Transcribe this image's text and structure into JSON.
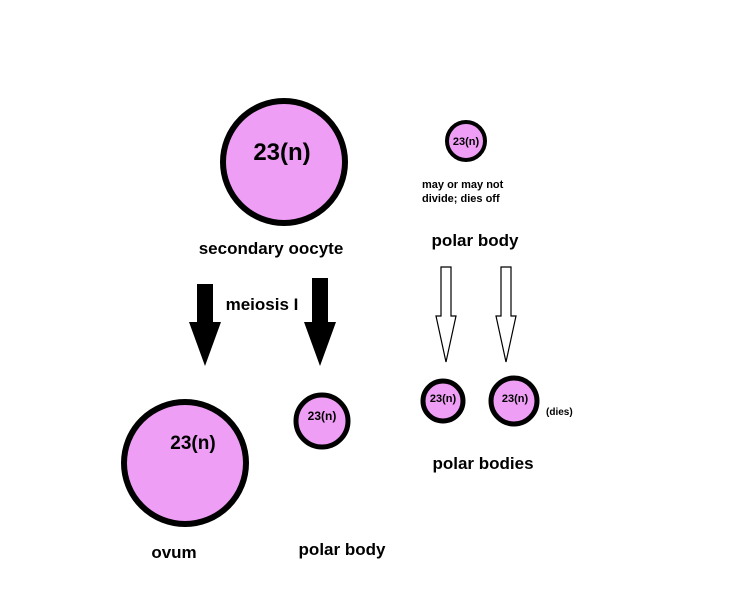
{
  "colors": {
    "cell_fill": "#ee9ef4",
    "cell_stroke": "#000000",
    "background": "#ffffff"
  },
  "cells": {
    "secondary_oocyte": {
      "text": "23(n)",
      "label": "secondary oocyte"
    },
    "polar_body_top": {
      "text": "23(n)",
      "label": "polar body",
      "note_line1": "may or may not",
      "note_line2": "divide; dies off"
    },
    "ovum": {
      "text": "23(n)",
      "label": "ovum"
    },
    "polar_body_bottom": {
      "text": "23(n)",
      "label": "polar body"
    },
    "polar_body_left": {
      "text": "23(n)"
    },
    "polar_body_right": {
      "text": "23(n)",
      "note": "(dies)"
    },
    "polar_bodies_label": "polar bodies"
  },
  "process": {
    "meiosis_label": "meiosis I"
  }
}
